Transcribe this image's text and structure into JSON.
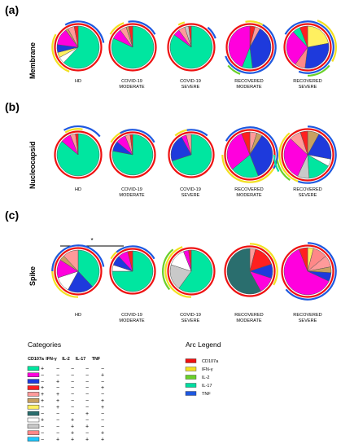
{
  "figure": {
    "panels": [
      {
        "letter": "(a)",
        "title": "Membrane"
      },
      {
        "letter": "(b)",
        "title": "Nucleocapsid"
      },
      {
        "letter": "(c)",
        "title": "Spike"
      }
    ],
    "column_labels": [
      {
        "line1": "HD",
        "line2": ""
      },
      {
        "line1": "COVID-19",
        "line2": "MODERATE"
      },
      {
        "line1": "COVID-19",
        "line2": "SEVERE"
      },
      {
        "line1": "RECOVERED",
        "line2": "MODERATE"
      },
      {
        "line1": "RECOVERED",
        "line2": "SEVERE"
      }
    ],
    "significance_marker": "*"
  },
  "legend": {
    "categories_title": "Categories",
    "columns": [
      "CD107a",
      "IFN-γ",
      "IL-2",
      "IL-17",
      "TNF"
    ],
    "rows": [
      {
        "color": "#00e6a0",
        "signs": [
          "+",
          "−",
          "−",
          "−",
          "−"
        ]
      },
      {
        "color": "#ff00dd",
        "signs": [
          "−",
          "−",
          "−",
          "−",
          "+"
        ]
      },
      {
        "color": "#1e3adc",
        "signs": [
          "−",
          "+",
          "−",
          "−",
          "−"
        ]
      },
      {
        "color": "#ff2020",
        "signs": [
          "+",
          "−",
          "−",
          "−",
          "+"
        ]
      },
      {
        "color": "#ff9a9a",
        "signs": [
          "+",
          "+",
          "−",
          "−",
          "−"
        ]
      },
      {
        "color": "#c8a060",
        "signs": [
          "+",
          "+",
          "−",
          "−",
          "+"
        ]
      },
      {
        "color": "#fff060",
        "signs": [
          "−",
          "+",
          "−",
          "−",
          "+"
        ]
      },
      {
        "color": "#2a6e6e",
        "signs": [
          "−",
          "−",
          "−",
          "+",
          "−"
        ]
      },
      {
        "color": "#ffffff",
        "signs": [
          "+",
          "−",
          "+",
          "−",
          "−"
        ]
      },
      {
        "color": "#c9c9c9",
        "signs": [
          "−",
          "−",
          "+",
          "+",
          "−"
        ]
      },
      {
        "color": "#ff8888",
        "signs": [
          "−",
          "−",
          "+",
          "−",
          "+"
        ]
      },
      {
        "color": "#1ec8ff",
        "signs": [
          "−",
          "+",
          "+",
          "+",
          "+"
        ]
      }
    ],
    "arc_title": "Arc Legend",
    "arcs": [
      {
        "label": "CD107a",
        "color": "#ee1111"
      },
      {
        "label": "IFN-γ",
        "color": "#f2e020"
      },
      {
        "label": "IL-2",
        "color": "#6ad02a"
      },
      {
        "label": "IL-17",
        "color": "#00dca0"
      },
      {
        "label": "TNF",
        "color": "#1e58e0"
      }
    ]
  },
  "chart_data": {
    "type": "pie",
    "slice_colors": {
      "A": "#00e6a0",
      "B": "#ff00dd",
      "C": "#1e3adc",
      "D": "#ff2020",
      "E": "#ff9a9a",
      "F": "#c8a060",
      "G": "#fff060",
      "H": "#2a6e6e",
      "I": "#ffffff",
      "J": "#c9c9c9",
      "K": "#ff8888",
      "L": "#1ec8ff"
    },
    "arc_colors": {
      "CD107a": "#ee1111",
      "IFN-γ": "#f2e020",
      "IL-2": "#6ad02a",
      "IL-17": "#00dca0",
      "TNF": "#1e58e0"
    },
    "pies": [
      {
        "antigen": "Membrane",
        "group": "HD",
        "slices": [
          [
            "A",
            62
          ],
          [
            "I",
            5
          ],
          [
            "G",
            4
          ],
          [
            "C",
            6
          ],
          [
            "B",
            13
          ],
          [
            "F",
            2
          ],
          [
            "E",
            5
          ],
          [
            "D",
            3
          ]
        ],
        "arcs": [
          [
            "CD107a",
            0,
            360,
            0
          ],
          [
            "IFN-γ",
            200,
            300,
            1
          ],
          [
            "TNF",
            330,
            80,
            1
          ]
        ]
      },
      {
        "antigen": "Membrane",
        "group": "COVID-19 MODERATE",
        "slices": [
          [
            "A",
            82
          ],
          [
            "B",
            8
          ],
          [
            "E",
            5
          ],
          [
            "F",
            2
          ],
          [
            "D",
            3
          ]
        ],
        "arcs": [
          [
            "CD107a",
            0,
            360,
            0
          ],
          [
            "IFN-γ",
            300,
            340,
            1
          ],
          [
            "TNF",
            350,
            60,
            1
          ]
        ]
      },
      {
        "antigen": "Membrane",
        "group": "COVID-19 SEVERE",
        "slices": [
          [
            "A",
            85
          ],
          [
            "B",
            5
          ],
          [
            "E",
            5
          ],
          [
            "J",
            3
          ],
          [
            "D",
            2
          ]
        ],
        "arcs": [
          [
            "CD107a",
            0,
            360,
            0
          ],
          [
            "IFN-γ",
            330,
            345,
            1
          ],
          [
            "TNF",
            40,
            70,
            1
          ]
        ]
      },
      {
        "antigen": "Membrane",
        "group": "RECOVERED MODERATE",
        "slices": [
          [
            "D",
            4
          ],
          [
            "E",
            4
          ],
          [
            "C",
            40
          ],
          [
            "A",
            8
          ],
          [
            "B",
            44
          ]
        ],
        "arcs": [
          [
            "CD107a",
            0,
            360,
            0
          ],
          [
            "TNF",
            20,
            250,
            1
          ],
          [
            "IL-2",
            200,
            230,
            2
          ],
          [
            "IFN-γ",
            350,
            30,
            1
          ]
        ]
      },
      {
        "antigen": "Membrane",
        "group": "RECOVERED SEVERE",
        "slices": [
          [
            "G",
            22
          ],
          [
            "C",
            30
          ],
          [
            "K",
            8
          ],
          [
            "B",
            28
          ],
          [
            "A",
            6
          ],
          [
            "D",
            6
          ]
        ],
        "arcs": [
          [
            "CD107a",
            0,
            360,
            0
          ],
          [
            "TNF",
            300,
            200,
            1
          ],
          [
            "IFN-γ",
            20,
            120,
            2
          ],
          [
            "IL-2",
            130,
            180,
            2
          ]
        ]
      },
      {
        "antigen": "Nucleocapsid",
        "group": "HD",
        "slices": [
          [
            "A",
            86
          ],
          [
            "B",
            8
          ],
          [
            "E",
            4
          ],
          [
            "D",
            2
          ]
        ],
        "arcs": [
          [
            "CD107a",
            0,
            360,
            0
          ],
          [
            "IFN-γ",
            330,
            10,
            1
          ],
          [
            "TNF",
            330,
            50,
            2
          ]
        ]
      },
      {
        "antigen": "Nucleocapsid",
        "group": "COVID-19 MODERATE",
        "slices": [
          [
            "A",
            78
          ],
          [
            "C",
            8
          ],
          [
            "B",
            8
          ],
          [
            "E",
            4
          ],
          [
            "D",
            2
          ]
        ],
        "arcs": [
          [
            "CD107a",
            0,
            360,
            0
          ],
          [
            "IFN-γ",
            300,
            350,
            1
          ],
          [
            "TNF",
            330,
            60,
            1
          ]
        ]
      },
      {
        "antigen": "Nucleocapsid",
        "group": "COVID-19 SEVERE",
        "slices": [
          [
            "A",
            70
          ],
          [
            "C",
            22
          ],
          [
            "B",
            4
          ],
          [
            "E",
            4
          ]
        ],
        "arcs": [
          [
            "CD107a",
            0,
            360,
            0
          ],
          [
            "IFN-γ",
            320,
            350,
            1
          ],
          [
            "TNF",
            350,
            40,
            1
          ]
        ]
      },
      {
        "antigen": "Nucleocapsid",
        "group": "RECOVERED MODERATE",
        "slices": [
          [
            "E",
            5
          ],
          [
            "F",
            4
          ],
          [
            "C",
            35
          ],
          [
            "A",
            20
          ],
          [
            "B",
            30
          ],
          [
            "D",
            6
          ]
        ],
        "arcs": [
          [
            "CD107a",
            0,
            360,
            0
          ],
          [
            "IFN-γ",
            90,
            270,
            1
          ],
          [
            "TNF",
            300,
            120,
            1
          ]
        ]
      },
      {
        "antigen": "Nucleocapsid",
        "group": "RECOVERED SEVERE",
        "slices": [
          [
            "F",
            8
          ],
          [
            "C",
            20
          ],
          [
            "I",
            5
          ],
          [
            "A",
            16
          ],
          [
            "J",
            8
          ],
          [
            "B",
            30
          ],
          [
            "E",
            8
          ],
          [
            "D",
            5
          ]
        ],
        "arcs": [
          [
            "CD107a",
            0,
            360,
            0
          ],
          [
            "TNF",
            0,
            200,
            1
          ],
          [
            "IFN-γ",
            200,
            320,
            1
          ],
          [
            "IL-2",
            215,
            260,
            2
          ],
          [
            "IL-17",
            240,
            270,
            3
          ]
        ]
      },
      {
        "antigen": "Spike",
        "group": "HD",
        "slices": [
          [
            "A",
            38
          ],
          [
            "C",
            20
          ],
          [
            "I",
            12
          ],
          [
            "B",
            14
          ],
          [
            "F",
            4
          ],
          [
            "E",
            12
          ]
        ],
        "arcs": [
          [
            "CD107a",
            0,
            360,
            0
          ],
          [
            "IFN-γ",
            180,
            320,
            1
          ],
          [
            "TNF",
            270,
            80,
            1
          ]
        ]
      },
      {
        "antigen": "Spike",
        "group": "COVID-19 MODERATE",
        "slices": [
          [
            "A",
            75
          ],
          [
            "I",
            5
          ],
          [
            "C",
            8
          ],
          [
            "B",
            8
          ],
          [
            "D",
            4
          ]
        ],
        "arcs": [
          [
            "CD107a",
            0,
            360,
            0
          ],
          [
            "IFN-γ",
            300,
            340,
            1
          ],
          [
            "TNF",
            320,
            60,
            1
          ]
        ]
      },
      {
        "antigen": "Spike",
        "group": "COVID-19 SEVERE",
        "slices": [
          [
            "A",
            60
          ],
          [
            "J",
            20
          ],
          [
            "I",
            14
          ],
          [
            "B",
            4
          ],
          [
            "D",
            2
          ]
        ],
        "arcs": [
          [
            "CD107a",
            0,
            360,
            0
          ],
          [
            "IFN-γ",
            180,
            340,
            1
          ],
          [
            "IL-2",
            230,
            320,
            2
          ]
        ]
      },
      {
        "antigen": "Spike",
        "group": "RECOVERED MODERATE",
        "slices": [
          [
            "E",
            4
          ],
          [
            "D",
            16
          ],
          [
            "C",
            10
          ],
          [
            "B",
            12
          ],
          [
            "H",
            58
          ]
        ],
        "arcs": [
          [
            "CD107a",
            0,
            360,
            0
          ],
          [
            "IFN-γ",
            0,
            120,
            1
          ]
        ]
      },
      {
        "antigen": "Spike",
        "group": "RECOVERED SEVERE",
        "slices": [
          [
            "G",
            4
          ],
          [
            "K",
            10
          ],
          [
            "E",
            8
          ],
          [
            "F",
            4
          ],
          [
            "C",
            6
          ],
          [
            "B",
            62
          ],
          [
            "D",
            6
          ]
        ],
        "arcs": [
          [
            "CD107a",
            0,
            360,
            0
          ],
          [
            "TNF",
            0,
            230,
            1
          ]
        ]
      }
    ]
  }
}
